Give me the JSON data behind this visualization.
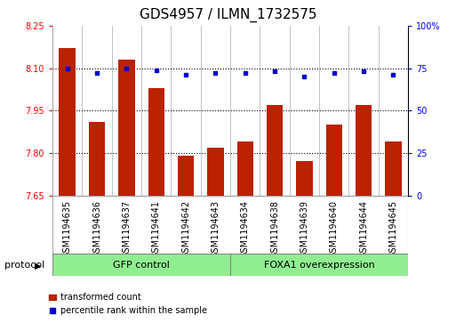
{
  "title": "GDS4957 / ILMN_1732575",
  "samples": [
    "GSM1194635",
    "GSM1194636",
    "GSM1194637",
    "GSM1194641",
    "GSM1194642",
    "GSM1194643",
    "GSM1194634",
    "GSM1194638",
    "GSM1194639",
    "GSM1194640",
    "GSM1194644",
    "GSM1194645"
  ],
  "bar_values": [
    8.17,
    7.91,
    8.13,
    8.03,
    7.79,
    7.82,
    7.84,
    7.97,
    7.77,
    7.9,
    7.97,
    7.84
  ],
  "dot_values": [
    75,
    72,
    75,
    74,
    71,
    72,
    72,
    73,
    70,
    72,
    73,
    71
  ],
  "bar_color": "#bb2200",
  "dot_color": "#0000cc",
  "ylim_left": [
    7.65,
    8.25
  ],
  "ylim_right": [
    0,
    100
  ],
  "yticks_left": [
    7.65,
    7.8,
    7.95,
    8.1,
    8.25
  ],
  "yticks_right": [
    0,
    25,
    50,
    75,
    100
  ],
  "ytick_labels_right": [
    "0",
    "25",
    "50",
    "75",
    "100%"
  ],
  "hlines": [
    7.8,
    7.95,
    8.1
  ],
  "group1_label": "GFP control",
  "group2_label": "FOXA1 overexpression",
  "group1_count": 6,
  "group2_count": 6,
  "protocol_label": "protocol",
  "legend_bar_label": "transformed count",
  "legend_dot_label": "percentile rank within the sample",
  "group_color": "#90ee90",
  "sample_bg_color": "#d8d8d8",
  "plot_bg": "#ffffff",
  "title_fontsize": 11,
  "tick_fontsize": 7,
  "label_fontsize": 7,
  "bar_width": 0.55
}
